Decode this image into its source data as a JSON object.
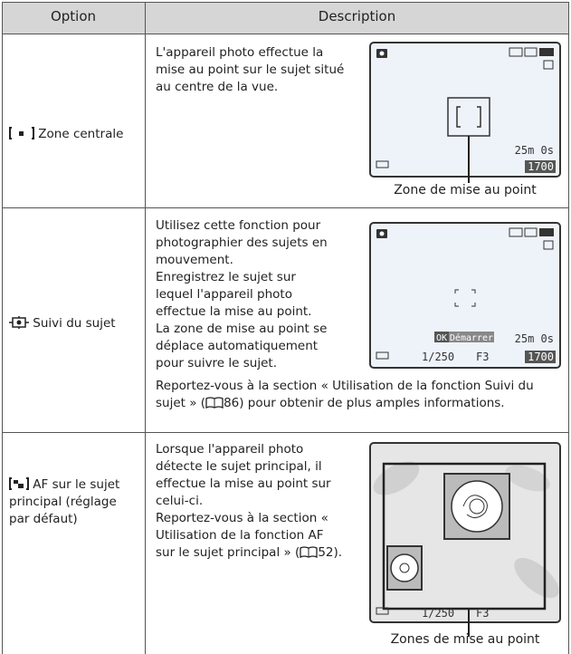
{
  "table": {
    "header": [
      "Option",
      "Description"
    ],
    "rows": [
      {
        "option": "Zone centrale",
        "description": [
          "L'appareil photo effectue la mise au point sur le sujet situé au centre de la vue."
        ],
        "screen": {
          "remaining": "25m 0s",
          "count": "1700"
        },
        "caption": "Zone de mise au point"
      },
      {
        "option": "Suivi du sujet",
        "description": [
          "Utilisez cette fonction pour photographier des sujets en mouvement.",
          "Enregistrez le sujet sur lequel l'appareil photo effectue la mise au point.",
          "La zone de mise au point se déplace automatiquement pour suivre le sujet."
        ],
        "screen": {
          "ok": "OK",
          "start": "Démarrer",
          "shutter": "1/250",
          "aperture": "F3",
          "remaining": "25m 0s",
          "count": "1700"
        },
        "note_before": "Reportez-vous à la section « Utilisation de la fonction Suivi du sujet » (",
        "note_page": "86",
        "note_after": ") pour obtenir de plus amples informations."
      },
      {
        "option": "AF sur le sujet principal (réglage par défaut)",
        "description": [
          "Lorsque l'appareil photo détecte le sujet principal, il effectue la mise au point sur celui-ci."
        ],
        "note_before": "Reportez-vous à la section « Utilisation de la fonction AF sur le sujet principal » (",
        "note_page": "52",
        "note_after": ").",
        "screen": {
          "shutter": "1/250",
          "aperture": "F3"
        },
        "caption": "Zones de mise au point"
      }
    ]
  }
}
